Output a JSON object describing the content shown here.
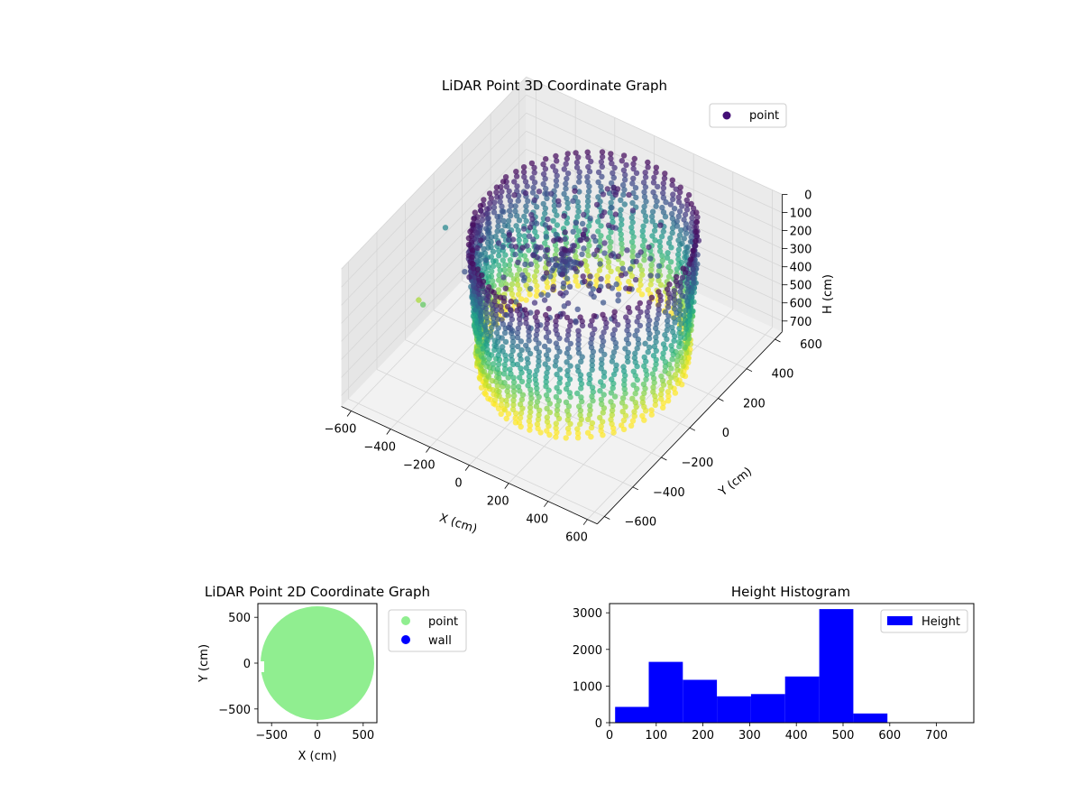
{
  "chart_data": [
    {
      "type": "scatter",
      "projection": "3d",
      "title": "LiDAR Point 3D Coordinate Graph",
      "xlabel": "X (cm)",
      "ylabel": "Y (cm)",
      "zlabel": "H (cm)",
      "xlim": [
        -650,
        650
      ],
      "ylim": [
        -650,
        650
      ],
      "zlim": [
        760,
        0
      ],
      "xticks": [
        "−600",
        "−400",
        "−200",
        "0",
        "200",
        "400",
        "600"
      ],
      "yticks": [
        "−600",
        "−400",
        "−200",
        "0",
        "200",
        "400",
        "600"
      ],
      "zticks": [
        "0",
        "100",
        "200",
        "300",
        "400",
        "500",
        "600",
        "700"
      ],
      "z_axis_inverted": true,
      "colormap": "viridis",
      "grid": true,
      "legend": {
        "position": "top-right",
        "entries": [
          {
            "label": "point",
            "color": "#440f76"
          }
        ]
      },
      "series": [
        {
          "name": "point",
          "description_of_shape": "ring of vertical scan columns, radius ~450-620 cm, heights 0-750 cm, color by height",
          "ring_radius_range": [
            430,
            620
          ],
          "height_range": [
            0,
            750
          ]
        }
      ]
    },
    {
      "type": "scatter",
      "title": "LiDAR Point 2D Coordinate Graph",
      "xlabel": "X (cm)",
      "ylabel": "Y (cm)",
      "xlim": [
        -650,
        650
      ],
      "ylim": [
        -650,
        650
      ],
      "xticks": [
        "−500",
        "0",
        "500"
      ],
      "yticks": [
        "500",
        "0",
        "−500"
      ],
      "grid": false,
      "legend": {
        "position": "outside-right",
        "entries": [
          {
            "label": "point",
            "color": "#90ee90"
          },
          {
            "label": "wall",
            "color": "#0000ff"
          }
        ]
      },
      "series": [
        {
          "name": "point",
          "color": "#90ee90",
          "shape": "filled disc",
          "radius": 620
        },
        {
          "name": "wall",
          "color": "#0000ff",
          "values": []
        }
      ]
    },
    {
      "type": "bar",
      "title": "Height Histogram",
      "xlabel": "",
      "ylabel": "",
      "xlim": [
        0,
        780
      ],
      "ylim": [
        0,
        3250
      ],
      "xticks": [
        "0",
        "100",
        "200",
        "300",
        "400",
        "500",
        "600",
        "700"
      ],
      "yticks": [
        "0",
        "1000",
        "2000",
        "3000"
      ],
      "legend": {
        "position": "top-right",
        "entries": [
          {
            "label": "Height",
            "color": "#0000ff"
          }
        ]
      },
      "series": [
        {
          "name": "Height",
          "color": "#0000ff",
          "bins": [
            {
              "x0": 12,
              "x1": 84,
              "value": 430
            },
            {
              "x0": 84,
              "x1": 157,
              "value": 1660
            },
            {
              "x0": 157,
              "x1": 230,
              "value": 1170
            },
            {
              "x0": 230,
              "x1": 303,
              "value": 720
            },
            {
              "x0": 303,
              "x1": 376,
              "value": 780
            },
            {
              "x0": 376,
              "x1": 449,
              "value": 1260
            },
            {
              "x0": 449,
              "x1": 522,
              "value": 3100
            },
            {
              "x0": 522,
              "x1": 595,
              "value": 250
            },
            {
              "x0": 595,
              "x1": 668,
              "value": 0
            },
            {
              "x0": 668,
              "x1": 741,
              "value": 0
            }
          ]
        }
      ]
    }
  ]
}
